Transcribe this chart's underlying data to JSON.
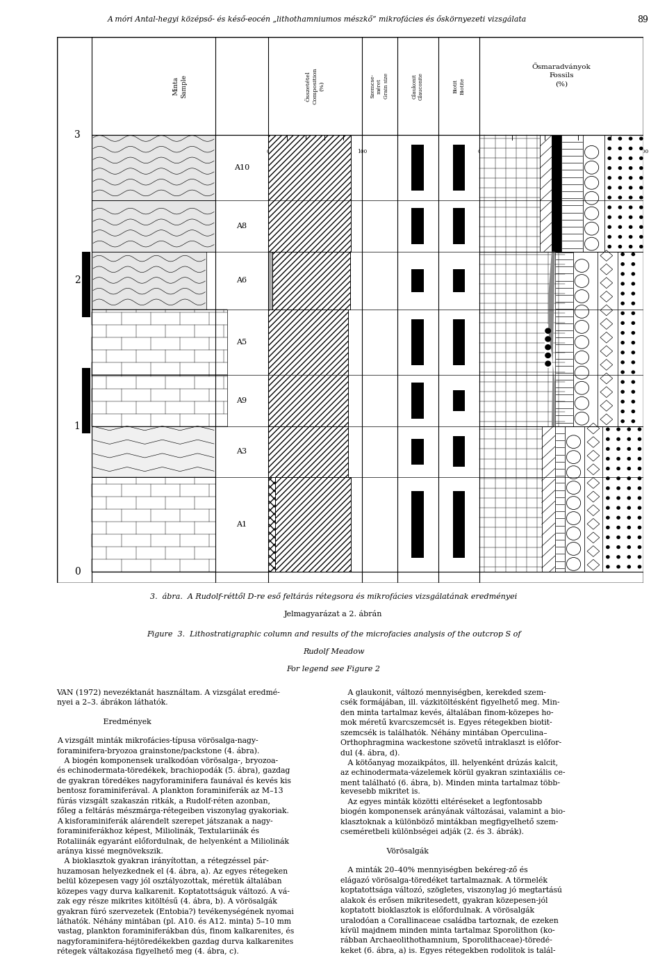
{
  "title": "A móri Antal-hegyi középső- és késő-eocén „lithothamniumos mészkő” mikrofácies és őskörnyezeti vizsgálata",
  "page_number": "89",
  "caption_3abra": "3.  ábra.  A Rudolf-réttől D-re eső feltárás rétegsora és mikrofácies vizsgálatának eredményei",
  "caption_jelm": "Jelmagyarázat a 2. ábrán",
  "caption_fig3": "Figure  3.  Lithostratigraphic column and results of the microfacies analysis of the outcrop S of",
  "caption_rudolf": "Rudolf Meadow",
  "caption_legend": "For legend see Figure 2",
  "header_minta": "Minta\nSample",
  "header_ossz": "Összetétel\nComposition\n(%)",
  "header_szem": "Szemcseméret\nGrain size",
  "header_glauk": "Glaukonit\nGlauconite",
  "header_biotit": "Biotit\nBiotite",
  "header_osmar": "Ősmaradványok\nFossils\n(%)",
  "body_left": "VAN (1972) nevezéktanát használtam. A vizsgálat eredmé-\nnyei a 2–3. ábrákon láthatók.\n\n                   Eredmények\n\nA vizsgált minták mikrofácies-típusa vörösalga-nagy-\nforaminifera-bryozoa grainstone/packstone (4. ábra).\n   A biogén komponensek uralkodóan vörösalga-, bryozoa-\nés echinodermata-töredékek, brachiopodák (5. ábra), gazdag\nde gyakran töredékes nagyforaminifera faunával és kevés kis\nbentosz foraminiferával. A plankton foraminiferák az M–13\nfúrás vizsgált szakaszán ritkák, a Rudolf-réten azonban,\nfőleg a feltárás mészmárga-rétegeiben viszonylag gyakoriak.\nA kisforaminiferák alárendelt szerepet játszanak a nagy-\nforaminiferákhoz képest, Miliolinák, Textulariinák és\nRotaliinák egyaránt előfordulnak, de helyenként a Miliolinák\naránya kissé megnövekszik.\n   A bioklasztok gyakran irányítottan, a rétegzéssel pár-\nhuzamosan helyezkednek el (4. ábra, a). Az egyes rétegeken\nbelül közepesen vagy jól osztályozottak, méretük általában\nközepes vagy durva kalkarenit. Koptatottságuk változó. A vá-\nzak egy része mikrites kitöltésű (4. ábra, b). A vörösalgák\ngyakran fúró szervezetek (Entobia?) tevékenységének nyomai\nláthatók. Néhány mintában (pl. A10. és A12. minta) 5–10 mm\nvastag, plankton foraminiferákban dús, finom kalkarenites, és\nnagyforaminifera-héjtöredékekben gazdag durva kalkarenites\nrétegek váltakozása figyelhető meg (4. ábra, c).",
  "body_right": "   A glaukonit, változó mennyiségben, kerekded szem-\ncsék formájában, ill. vázkitöltésként figyelhető meg. Min-\nden minta tartalmaz kevés, általában finom-közepes ho-\nmok méretű kvarcszemcsét is. Egyes rétegekben biotit-\nszemcsék is találhatók. Néhány mintában Operculina–\nOrthophragmina wackestone szövetű intraklaszt is előfor-\ndul (4. ábra, d).\n   A kötőanyag mozaikpátos, ill. helyenként drúzás kalcit,\naz echinodermata-vázelemek körül gyakran szintaxiális ce-\nment található (6. ábra, b). Minden minta tartalmaz több-\nkevesebb mikritet is.\n   Az egyes minták közötti eltéréseket a legfontosabb\nbiogén komponensek arányának változásai, valamint a bio-\nklasztoknak a különböző mintákban megfigyelhető szem-\ncseméretbeli különbségei adják (2. és 3. ábrák).\n\n                   Vörösalgák\n\n   A minták 20–40% mennyiségben bekéreg-ző és\nelágazó vörösalga-töredéket tartalmaznak. A törmelék\nkoptatottsága változó, szögletes, viszonylag jó megtartású\nalakok és erősen mikritesedett, gyakran közepesen-jól\nkoptatott bioklasztok is előfordulnak. A vörösalgák\nuralodóan a Corallinaceae családba tartoznak, de ezeken\nkívül majdnem minden minta tartalmaz Sporolithon (ko-\nrábban Archaeolithothamnium, Sporolithaceae)-töredé-\nkeket (6. ábra, a) is. Egyes rétegekben rodolitok is talál-"
}
